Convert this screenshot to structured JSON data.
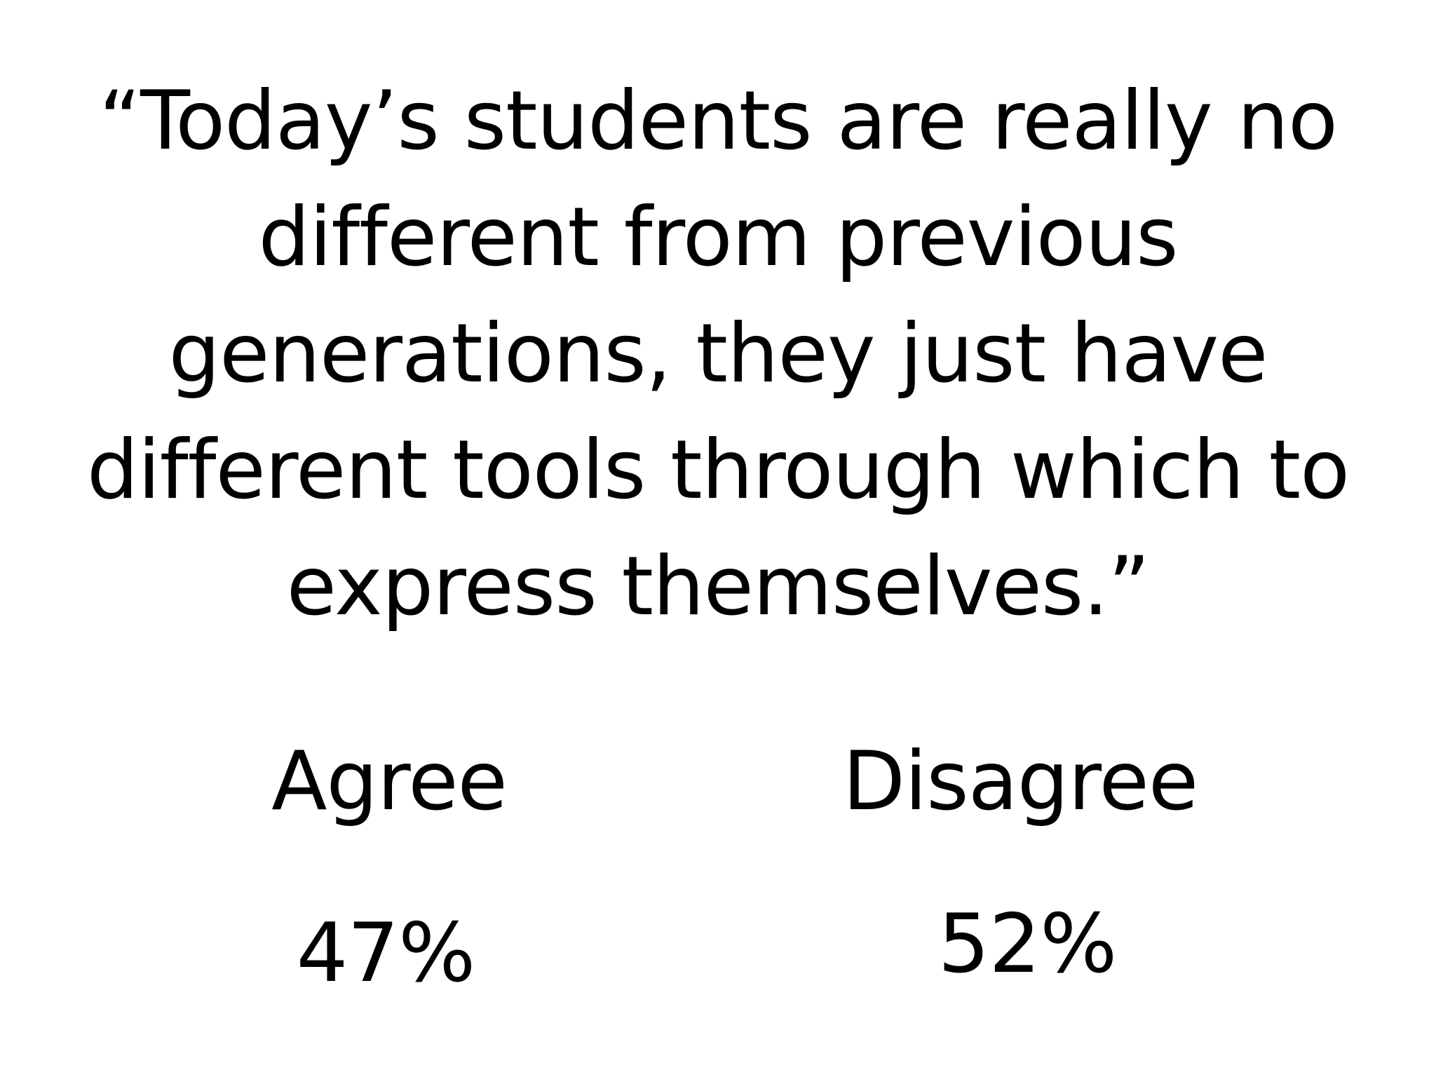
{
  "slide": {
    "quote_lines": [
      "“Today’s students are really no",
      "different from previous",
      "generations, they just have",
      "different tools through which to",
      "express themselves.”"
    ],
    "options": [
      {
        "label": "Agree",
        "value": "47%"
      },
      {
        "label": "Disagree",
        "value": "52%"
      }
    ]
  }
}
